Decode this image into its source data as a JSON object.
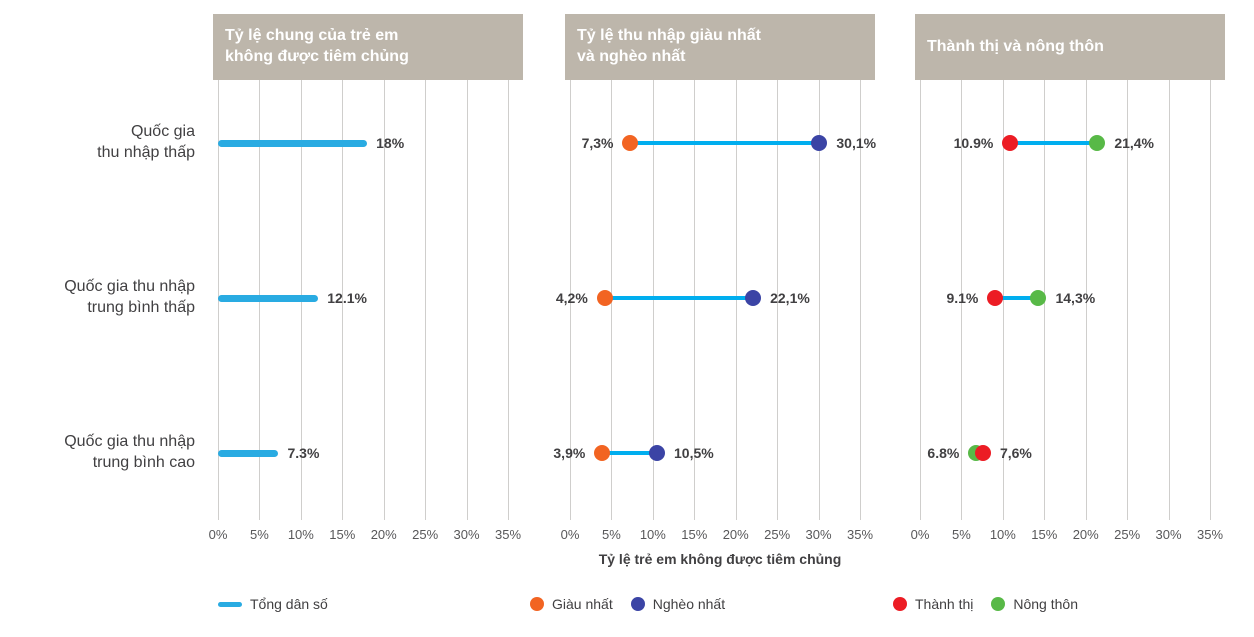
{
  "chart_data": {
    "type": "dumbbell",
    "x_axis": {
      "title": "Tỷ lệ trẻ em không được tiêm chủng",
      "min": 0,
      "max": 35,
      "tick_step": 5,
      "ticks": [
        "0%",
        "5%",
        "10%",
        "15%",
        "20%",
        "25%",
        "30%",
        "35%"
      ]
    },
    "row_labels": [
      "Quốc gia\nthu nhập thấp",
      "Quốc gia thu nhập\ntrung bình thấp",
      "Quốc gia thu nhập\ntrung bình cao"
    ],
    "colors": {
      "header_bg": "#BDB6AB",
      "grid": "#CFCECC",
      "connector": "#00AEEF",
      "text": "#414042"
    },
    "panels": [
      {
        "name": "overall-rate",
        "title": "Tỷ lệ chung của trẻ em\nkhông được tiêm chủng",
        "type": "bar",
        "series": "Tổng dân số",
        "rows": [
          {
            "value": 18,
            "label": "18%"
          },
          {
            "value": 12.1,
            "label": "12.1%"
          },
          {
            "value": 7.3,
            "label": "7.3%"
          }
        ]
      },
      {
        "name": "richest-poorest",
        "title": "Tỷ lệ thu nhập giàu nhất\nvà nghèo nhất",
        "type": "dumbbell",
        "rows": [
          {
            "dots": [
              {
                "series": "Giàu nhất",
                "value": 7.3,
                "label": "7,3%"
              },
              {
                "series": "Nghèo nhất",
                "value": 30.1,
                "label": "30,1%"
              }
            ]
          },
          {
            "dots": [
              {
                "series": "Giàu nhất",
                "value": 4.2,
                "label": "4,2%"
              },
              {
                "series": "Nghèo nhất",
                "value": 22.1,
                "label": "22,1%"
              }
            ]
          },
          {
            "dots": [
              {
                "series": "Giàu nhất",
                "value": 3.9,
                "label": "3,9%"
              },
              {
                "series": "Nghèo nhất",
                "value": 10.5,
                "label": "10,5%"
              }
            ]
          }
        ]
      },
      {
        "name": "urban-rural",
        "title": "Thành thị và nông thôn",
        "type": "dumbbell",
        "rows": [
          {
            "dots": [
              {
                "series": "Thành thị",
                "value": 10.9,
                "label": "10.9%"
              },
              {
                "series": "Nông thôn",
                "value": 21.4,
                "label": "21,4%"
              }
            ]
          },
          {
            "dots": [
              {
                "series": "Thành thị",
                "value": 9.1,
                "label": "9.1%"
              },
              {
                "series": "Nông thôn",
                "value": 14.3,
                "label": "14,3%"
              }
            ]
          },
          {
            "dots": [
              {
                "series": "Thành thị",
                "value": 7.6,
                "label": "7,6%"
              },
              {
                "series": "Nông thôn",
                "value": 6.8,
                "label": "6.8%"
              }
            ]
          }
        ]
      }
    ],
    "legend": [
      {
        "label": "Tổng dân số",
        "name": "total-population",
        "swatch": "line",
        "color": "#29ABE2"
      },
      {
        "label": "Giàu nhất",
        "name": "richest",
        "swatch": "dot",
        "color": "#F26422"
      },
      {
        "label": "Nghèo nhất",
        "name": "poorest",
        "swatch": "dot",
        "color": "#3B44A5"
      },
      {
        "label": "Thành thị",
        "name": "urban",
        "swatch": "dot",
        "color": "#EC1C24"
      },
      {
        "label": "Nông thôn",
        "name": "rural",
        "swatch": "dot",
        "color": "#58B947"
      }
    ]
  }
}
